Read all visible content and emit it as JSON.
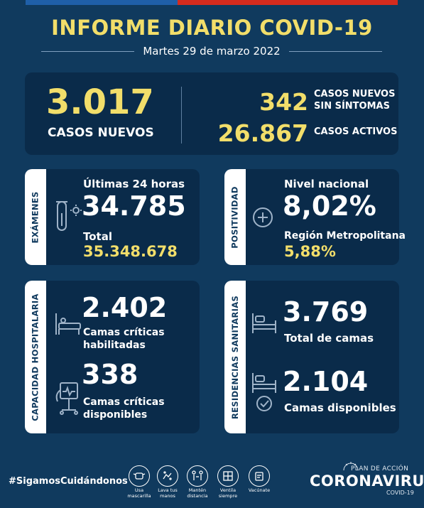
{
  "header": {
    "title": "INFORME DIARIO COVID-19",
    "date": "Martes 29 de marzo 2022"
  },
  "summary": {
    "new_cases_value": "3.017",
    "new_cases_label": "CASOS NUEVOS",
    "asymptomatic_value": "342",
    "asymptomatic_label_1": "CASOS NUEVOS",
    "asymptomatic_label_2": "SIN SÍNTOMAS",
    "active_value": "26.867",
    "active_label": "CASOS ACTIVOS"
  },
  "exams": {
    "tab": "EXÁMENES",
    "period_label": "Últimas 24 horas",
    "period_value": "34.785",
    "total_label": "Total",
    "total_value": "35.348.678"
  },
  "positivity": {
    "tab": "POSITIVIDAD",
    "national_label": "Nivel nacional",
    "national_value": "8,02%",
    "rm_label": "Región Metropolitana",
    "rm_value": "5,88%"
  },
  "hospital": {
    "tab": "CAPACIDAD HOSPITALARIA",
    "enabled_value": "2.402",
    "enabled_label_1": "Camas críticas",
    "enabled_label_2": "habilitadas",
    "available_value": "338",
    "available_label_1": "Camas críticas",
    "available_label_2": "disponibles"
  },
  "residences": {
    "tab": "RESIDENCIAS SANITARIAS",
    "total_value": "3.769",
    "total_label": "Total de camas",
    "available_value": "2.104",
    "available_label": "Camas disponibles"
  },
  "footer": {
    "hashtag": "#SigamosCuidándonos",
    "habits": [
      {
        "icon": "mask-icon",
        "label": "Usa\nmascarilla"
      },
      {
        "icon": "hand-wash-icon",
        "label": "Lava tus\nmanos"
      },
      {
        "icon": "distance-icon",
        "label": "Mantén\ndistancia"
      },
      {
        "icon": "ventilate-icon",
        "label": "Ventila\nsiempre"
      },
      {
        "icon": "vaccine-icon",
        "label": "Vacúnate"
      }
    ],
    "brand_plan": "PLAN DE ACCIÓN",
    "brand_name": "CORONAVIRUS",
    "brand_sub": "COVID-19"
  },
  "colors": {
    "background": "#103a5e",
    "panel": "#0a2b4a",
    "accent_yellow": "#f2de6a",
    "flag_blue": "#1f5fa8",
    "flag_red": "#d52b1e"
  }
}
